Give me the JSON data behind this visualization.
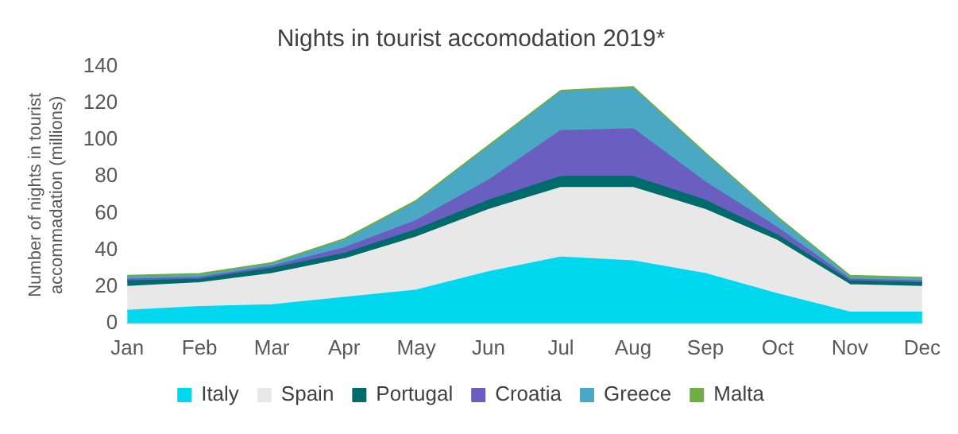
{
  "chart_data": {
    "type": "area",
    "title": "Nights in tourist accomodation 2019*",
    "ylabel": "Number of nights in tourist accommadation (millions)",
    "categories": [
      "Jan",
      "Feb",
      "Mar",
      "Apr",
      "May",
      "Jun",
      "Jul",
      "Aug",
      "Sep",
      "Oct",
      "Nov",
      "Dec"
    ],
    "stacked": true,
    "ylim": [
      0,
      140
    ],
    "yticks": [
      0,
      20,
      40,
      60,
      80,
      100,
      120,
      140
    ],
    "grid": false,
    "legend": "bottom",
    "series": [
      {
        "name": "Italy",
        "color": "#00d8f0",
        "values": [
          7,
          9,
          10,
          14,
          18,
          28,
          36,
          34,
          27,
          16,
          6,
          6
        ]
      },
      {
        "name": "Spain",
        "color": "#e8e8e8",
        "values": [
          13,
          13,
          17,
          21,
          29,
          34,
          38,
          40,
          35,
          29,
          15,
          14
        ]
      },
      {
        "name": "Portugal",
        "color": "#006b6b",
        "values": [
          3,
          2,
          3,
          3,
          4,
          5,
          6,
          6,
          5,
          3,
          2,
          2
        ]
      },
      {
        "name": "Croatia",
        "color": "#6a5fc1",
        "values": [
          1,
          1,
          1,
          3,
          5,
          11,
          25,
          26,
          10,
          4,
          1,
          1
        ]
      },
      {
        "name": "Greece",
        "color": "#4aa8c4",
        "values": [
          1,
          1,
          1,
          4,
          10,
          18,
          21,
          22,
          15,
          5,
          1,
          1
        ]
      },
      {
        "name": "Malta",
        "color": "#70ad47",
        "values": [
          1,
          1,
          1,
          1,
          1,
          1,
          1,
          1,
          1,
          1,
          1,
          1
        ]
      }
    ]
  }
}
